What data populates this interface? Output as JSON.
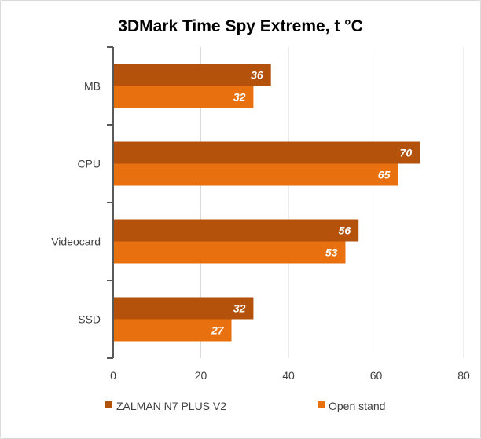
{
  "chart_data": {
    "type": "bar",
    "orientation": "horizontal",
    "title": "3DMark Time Spy Extreme, t °C",
    "categories": [
      "MB",
      "CPU",
      "Videocard",
      "SSD"
    ],
    "series": [
      {
        "name": "ZALMAN N7 PLUS V2",
        "values": [
          36,
          70,
          56,
          32
        ],
        "color": "#b4520c"
      },
      {
        "name": "Open stand",
        "values": [
          32,
          65,
          53,
          27
        ],
        "color": "#e8700f"
      }
    ],
    "xlim": [
      0,
      80
    ],
    "xticks": [
      0,
      20,
      40,
      60,
      80
    ],
    "grid": true,
    "legend": "bottom"
  }
}
